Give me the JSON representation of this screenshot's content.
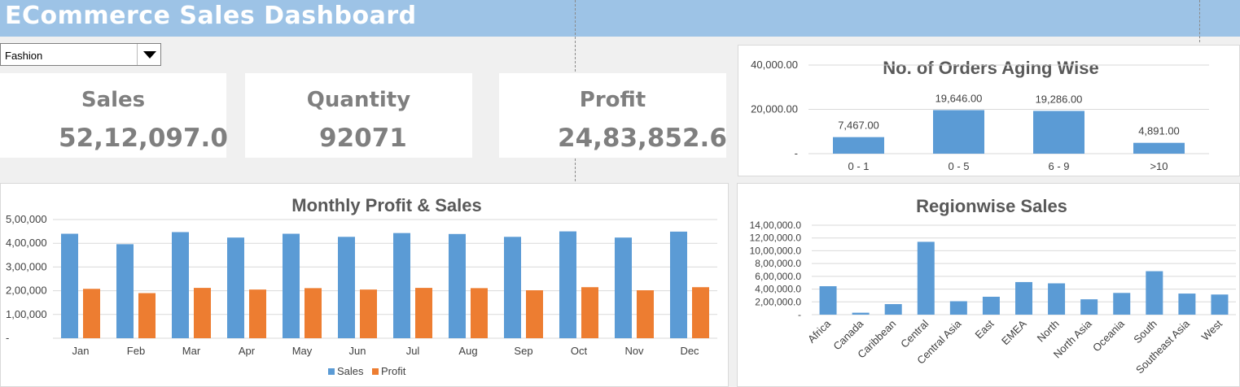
{
  "header": {
    "title": "ECommerce Sales Dashboard"
  },
  "filter": {
    "selected": "Fashion"
  },
  "kpis": {
    "sales": {
      "label": "Sales",
      "value": "52,12,097.0"
    },
    "quantity": {
      "label": "Quantity",
      "value": "92071"
    },
    "profit": {
      "label": "Profit",
      "value": "24,83,852.6"
    }
  },
  "colors": {
    "header": "#9dc3e6",
    "sales": "#5b9bd5",
    "profit": "#ed7d31",
    "kpi_text": "#7f7f7f"
  },
  "chart_data": [
    {
      "type": "bar",
      "title": "No. of Orders Aging Wise",
      "categories": [
        "0 - 1",
        "0 - 5",
        "6 - 9",
        ">10"
      ],
      "values": [
        7467,
        19646,
        19286,
        4891
      ],
      "data_labels": [
        "7,467.00",
        "19,646.00",
        "19,286.00",
        "4,891.00"
      ],
      "yticks": [
        "-",
        "20,000.00",
        "40,000.00"
      ],
      "ylim": [
        0,
        40000
      ],
      "grid": true,
      "legend": "none"
    },
    {
      "type": "bar",
      "title": "Monthly Profit & Sales",
      "categories": [
        "Jan",
        "Feb",
        "Mar",
        "Apr",
        "May",
        "Jun",
        "Jul",
        "Aug",
        "Sep",
        "Oct",
        "Nov",
        "Dec"
      ],
      "series": [
        {
          "name": "Sales",
          "values": [
            440000,
            396000,
            447000,
            424000,
            440000,
            427000,
            443000,
            439000,
            427000,
            450000,
            424000,
            449000
          ]
        },
        {
          "name": "Profit",
          "values": [
            208000,
            190000,
            212000,
            205000,
            211000,
            205000,
            212000,
            211000,
            202000,
            215000,
            202000,
            215000
          ]
        }
      ],
      "yticks": [
        "-",
        "1,00,000",
        "2,00,000",
        "3,00,000",
        "4,00,000",
        "5,00,000"
      ],
      "ylim": [
        0,
        500000
      ],
      "grid": true,
      "legend": "bottom"
    },
    {
      "type": "bar",
      "title": "Regionwise Sales",
      "categories": [
        "Africa",
        "Canada",
        "Caribbean",
        "Central",
        "Central Asia",
        "East",
        "EMEA",
        "North",
        "North Asia",
        "Oceania",
        "South",
        "Southeast Asia",
        "West"
      ],
      "values": [
        445000,
        30000,
        165000,
        1140000,
        210000,
        280000,
        510000,
        490000,
        240000,
        340000,
        680000,
        330000,
        315000
      ],
      "yticks": [
        "-",
        "2,00,000.0",
        "4,00,000.0",
        "6,00,000.0",
        "8,00,000.0",
        "10,00,000.0",
        "12,00,000.0",
        "14,00,000.0"
      ],
      "ylim": [
        0,
        1400000
      ],
      "grid": true,
      "legend": "none"
    }
  ]
}
